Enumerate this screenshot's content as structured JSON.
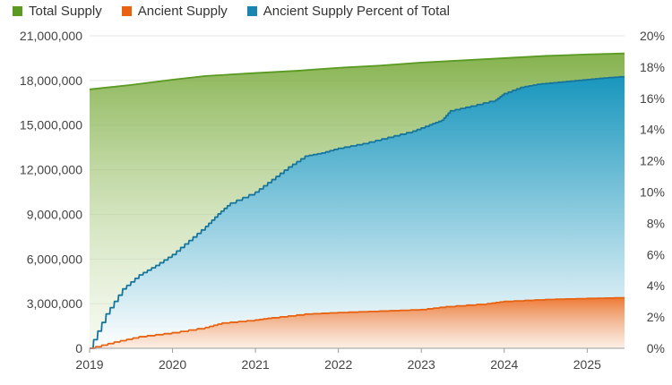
{
  "chart_data": {
    "type": "area",
    "title": "",
    "xlabel": "",
    "ylabel_left": "",
    "ylabel_right": "",
    "x_ticks": [
      "2019",
      "2020",
      "2021",
      "2022",
      "2023",
      "2024",
      "2025"
    ],
    "x_range": [
      2019.0,
      2025.45
    ],
    "y_left_ticks": [
      "0",
      "3,000,000",
      "6,000,000",
      "9,000,000",
      "12,000,000",
      "15,000,000",
      "18,000,000",
      "21,000,000"
    ],
    "y_left_range": [
      0,
      21000000
    ],
    "y_right_ticks": [
      "0%",
      "2%",
      "4%",
      "6%",
      "8%",
      "10%",
      "12%",
      "14%",
      "16%",
      "18%",
      "20%"
    ],
    "y_right_range": [
      0,
      20
    ],
    "grid": "horizontal",
    "legend_position": "top-left",
    "series": [
      {
        "name": "Total Supply",
        "axis": "left",
        "color": "#5a9a22",
        "x": [
          2019.0,
          2019.5,
          2020.0,
          2020.4,
          2021.0,
          2021.5,
          2022.0,
          2022.5,
          2023.0,
          2023.5,
          2024.0,
          2024.5,
          2025.0,
          2025.45
        ],
        "values": [
          17400000,
          17700000,
          18050000,
          18300000,
          18500000,
          18650000,
          18850000,
          19000000,
          19200000,
          19350000,
          19500000,
          19650000,
          19750000,
          19820000
        ]
      },
      {
        "name": "Ancient Supply",
        "axis": "left",
        "color": "#e8620f",
        "x": [
          2019.0,
          2019.3,
          2019.6,
          2020.0,
          2020.4,
          2020.6,
          2021.0,
          2021.2,
          2021.6,
          2022.0,
          2022.5,
          2023.0,
          2023.3,
          2023.8,
          2024.0,
          2024.5,
          2025.0,
          2025.45
        ],
        "values": [
          0,
          420000,
          780000,
          1050000,
          1400000,
          1700000,
          1900000,
          2050000,
          2300000,
          2400000,
          2500000,
          2600000,
          2800000,
          3000000,
          3150000,
          3280000,
          3350000,
          3400000
        ]
      },
      {
        "name": "Ancient Supply Percent of Total",
        "axis": "right",
        "color": "#1a86b0",
        "x": [
          2019.0,
          2019.2,
          2019.4,
          2019.6,
          2019.8,
          2020.0,
          2020.2,
          2020.4,
          2020.55,
          2020.7,
          2021.0,
          2021.2,
          2021.4,
          2021.6,
          2021.8,
          2022.0,
          2022.3,
          2022.6,
          2022.9,
          2023.1,
          2023.25,
          2023.35,
          2023.6,
          2023.9,
          2024.0,
          2024.2,
          2024.4,
          2024.6,
          2024.8,
          2025.0,
          2025.2,
          2025.45
        ],
        "values": [
          0,
          2.2,
          3.8,
          4.7,
          5.3,
          6.0,
          6.9,
          7.8,
          8.6,
          9.3,
          10.0,
          10.8,
          11.6,
          12.3,
          12.5,
          12.8,
          13.1,
          13.5,
          13.9,
          14.3,
          14.6,
          15.2,
          15.5,
          15.9,
          16.3,
          16.7,
          16.9,
          17.0,
          17.1,
          17.2,
          17.3,
          17.4
        ]
      }
    ]
  }
}
